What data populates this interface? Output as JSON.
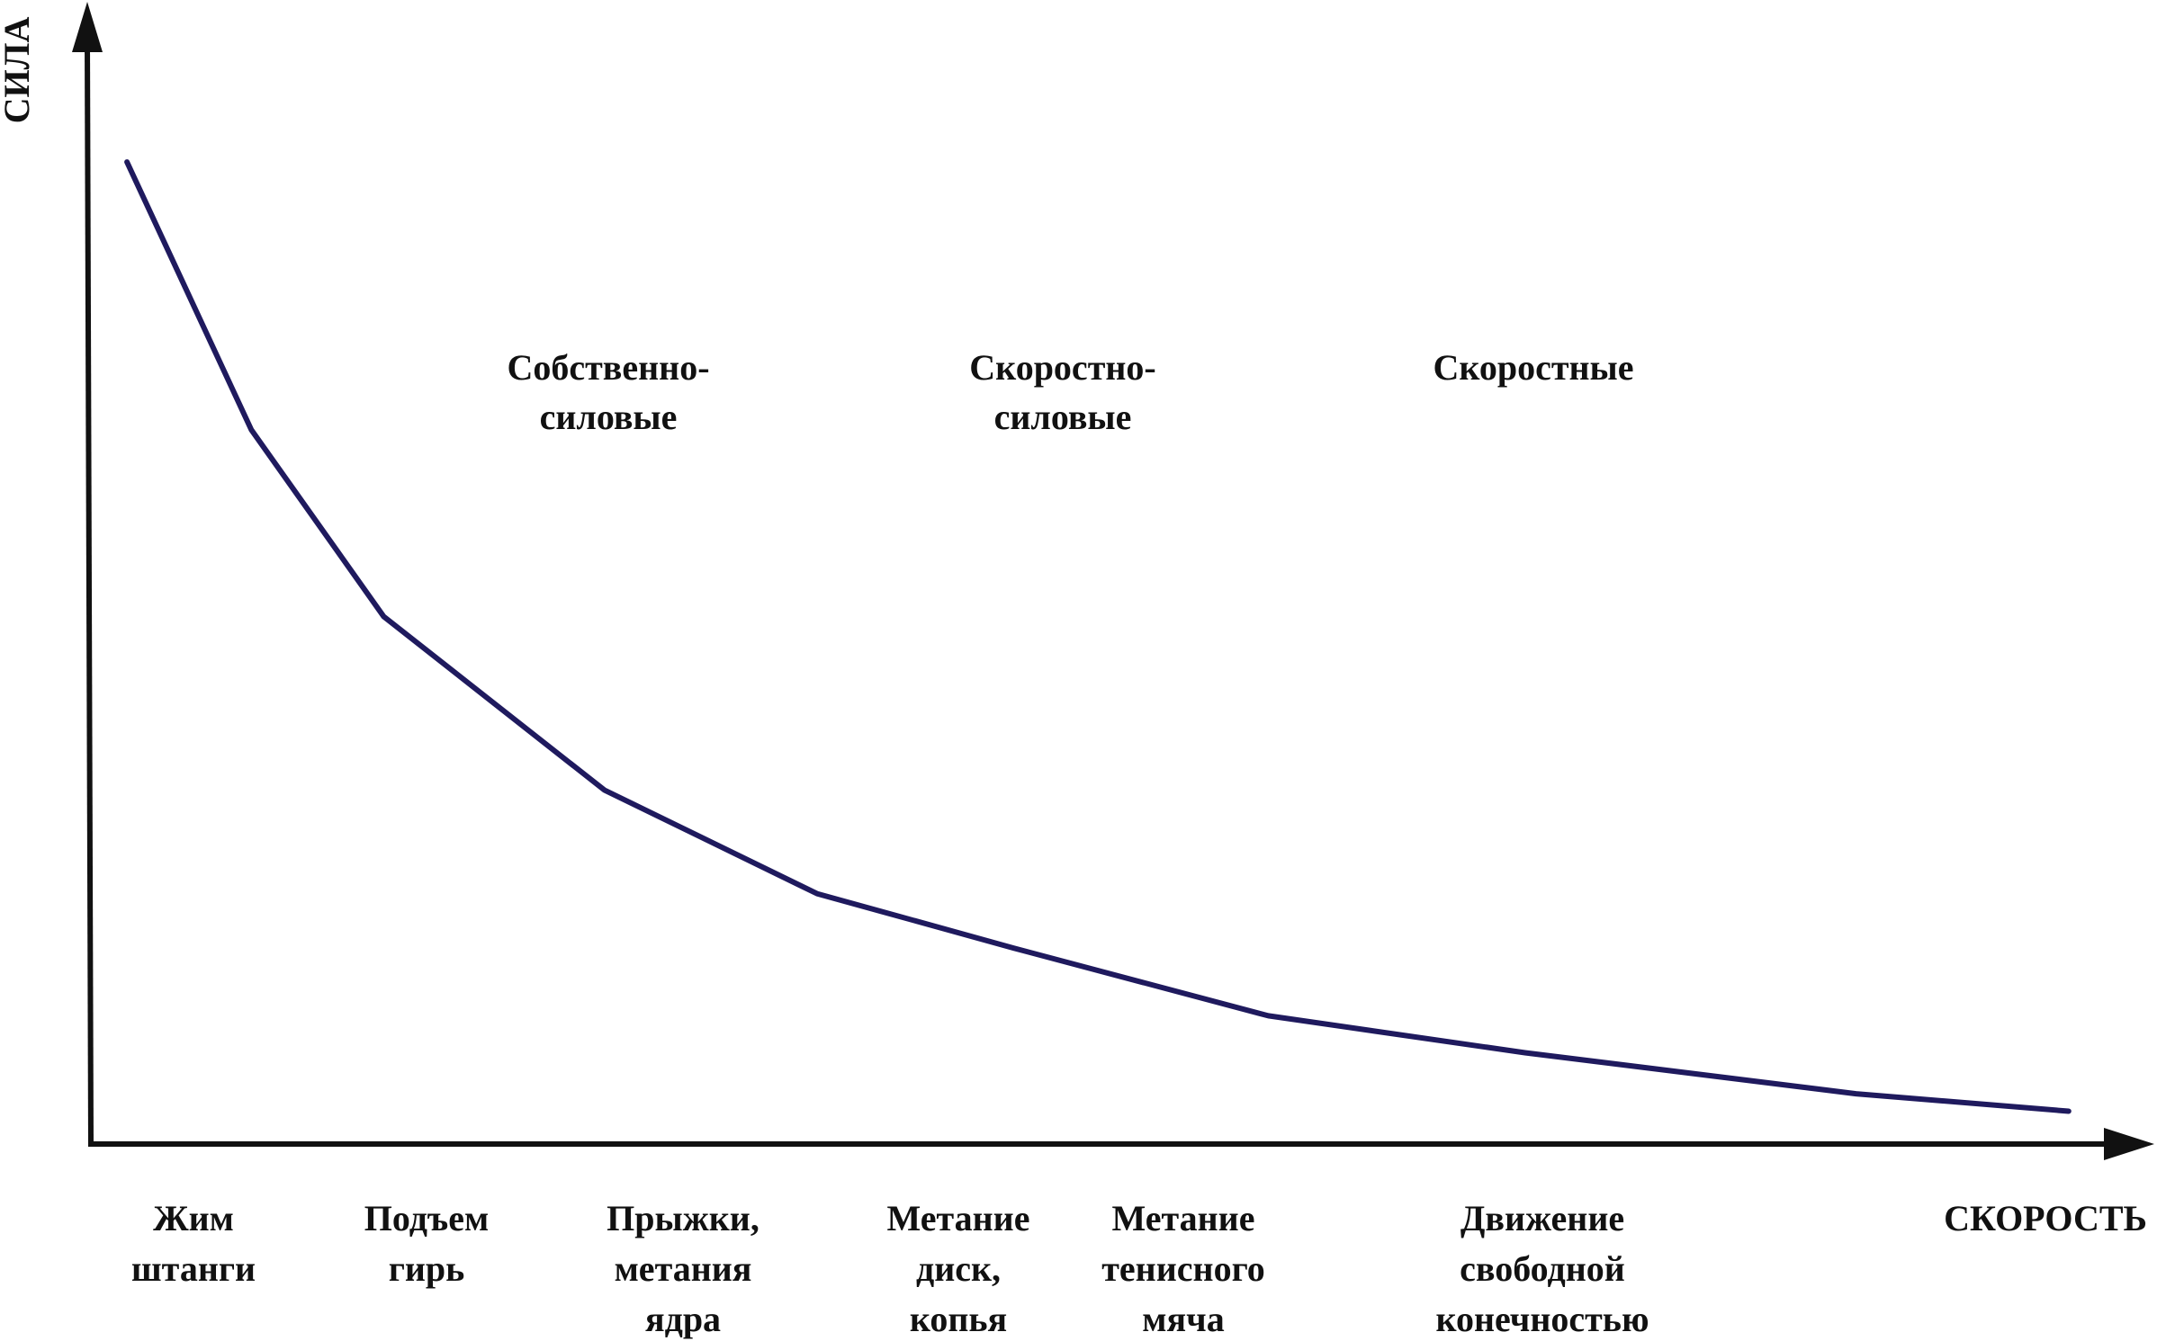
{
  "chart_data": {
    "type": "line",
    "title": "",
    "xlabel": "СКОРОСТЬ",
    "ylabel": "СИЛА",
    "grid": false,
    "legend": "none",
    "line_color": "#1f1a5e",
    "axis_color": "#111111",
    "series": [
      {
        "x": [
          0.018,
          0.08,
          0.146,
          0.256,
          0.362,
          0.46,
          0.587,
          0.715,
          0.88,
          0.986
        ],
        "y": [
          0.957,
          0.696,
          0.514,
          0.345,
          0.244,
          0.191,
          0.125,
          0.089,
          0.049,
          0.032
        ]
      }
    ],
    "zone_labels": [
      {
        "lines": [
          "Собственно-",
          "силовые"
        ]
      },
      {
        "lines": [
          "Скоростно-",
          "силовые"
        ]
      },
      {
        "lines": [
          "Скоростные"
        ]
      }
    ],
    "category_labels": [
      {
        "lines": [
          "Жим",
          "штанги"
        ]
      },
      {
        "lines": [
          "Подъем",
          "гирь"
        ]
      },
      {
        "lines": [
          "Прыжки,",
          "метания",
          "ядра"
        ]
      },
      {
        "lines": [
          "Метание",
          "диск,",
          "копья"
        ]
      },
      {
        "lines": [
          "Метание",
          "тенисного",
          "мяча"
        ]
      },
      {
        "lines": [
          "Движение",
          "свободной",
          "конечностью"
        ]
      }
    ]
  }
}
